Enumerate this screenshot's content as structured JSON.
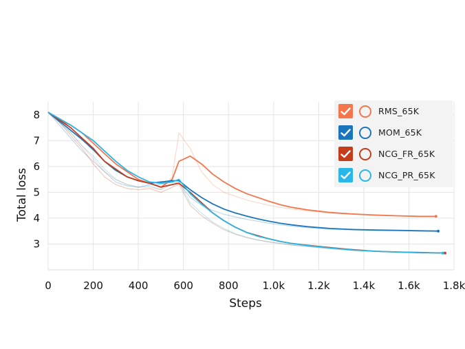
{
  "chart_data": {
    "type": "line",
    "title": "",
    "xlabel": "Steps",
    "ylabel": "Total loss",
    "xlim": [
      0,
      1800
    ],
    "ylim": [
      2.0,
      8.5
    ],
    "xticks": [
      0,
      200,
      400,
      600,
      800,
      1000,
      1200,
      1400,
      1600,
      1800
    ],
    "xtick_labels": [
      "0",
      "200",
      "400",
      "600",
      "800",
      "1.0k",
      "1.2k",
      "1.4k",
      "1.6k",
      "1.8k"
    ],
    "yticks": [
      3,
      4,
      5,
      6,
      7,
      8
    ],
    "ytick_labels": [
      "3",
      "4",
      "5",
      "6",
      "7",
      "8"
    ],
    "grid": true,
    "legend_position": "top-right",
    "series": [
      {
        "name": "RMS_65K",
        "color": "#f4764c",
        "x": [
          0,
          50,
          100,
          150,
          200,
          250,
          300,
          350,
          400,
          450,
          500,
          550,
          580,
          630,
          680,
          730,
          780,
          830,
          880,
          930,
          980,
          1030,
          1080,
          1150,
          1250,
          1350,
          1450,
          1550,
          1650,
          1720
        ],
        "y": [
          8.1,
          7.8,
          7.6,
          7.3,
          6.9,
          6.5,
          6.1,
          5.8,
          5.5,
          5.35,
          5.2,
          5.5,
          6.2,
          6.4,
          6.1,
          5.7,
          5.4,
          5.15,
          4.95,
          4.8,
          4.65,
          4.52,
          4.42,
          4.32,
          4.22,
          4.16,
          4.12,
          4.09,
          4.07,
          4.07
        ],
        "raw": [
          8.1,
          7.7,
          7.3,
          6.8,
          6.3,
          5.8,
          5.5,
          5.3,
          5.2,
          5.2,
          5.1,
          5.6,
          7.3,
          6.7,
          5.8,
          5.3,
          5.0,
          4.85,
          4.7,
          4.6,
          4.5,
          4.42,
          4.35,
          4.28,
          4.2,
          4.15,
          4.1,
          4.08,
          4.06,
          4.07
        ]
      },
      {
        "name": "MOM_65K",
        "color": "#1a75bc",
        "x": [
          0,
          50,
          100,
          150,
          200,
          250,
          300,
          350,
          400,
          450,
          500,
          550,
          580,
          630,
          680,
          730,
          780,
          830,
          880,
          930,
          980,
          1030,
          1080,
          1150,
          1250,
          1350,
          1450,
          1550,
          1650,
          1730
        ],
        "y": [
          8.1,
          7.75,
          7.4,
          7.05,
          6.65,
          6.2,
          5.85,
          5.6,
          5.45,
          5.35,
          5.4,
          5.45,
          5.45,
          5.1,
          4.8,
          4.55,
          4.35,
          4.2,
          4.08,
          3.97,
          3.88,
          3.8,
          3.74,
          3.67,
          3.6,
          3.56,
          3.54,
          3.53,
          3.51,
          3.5
        ],
        "raw": [
          8.1,
          7.6,
          7.1,
          6.6,
          6.2,
          5.8,
          5.4,
          5.25,
          5.2,
          5.3,
          5.3,
          5.4,
          5.35,
          4.8,
          4.5,
          4.3,
          4.15,
          4.05,
          3.95,
          3.88,
          3.8,
          3.74,
          3.69,
          3.63,
          3.57,
          3.54,
          3.52,
          3.51,
          3.5,
          3.5
        ]
      },
      {
        "name": "NCG_FR_65K",
        "color": "#c43e1c",
        "x": [
          0,
          50,
          100,
          150,
          200,
          250,
          300,
          350,
          400,
          450,
          500,
          550,
          580,
          630,
          680,
          730,
          780,
          830,
          880,
          930,
          980,
          1030,
          1080,
          1150,
          1250,
          1350,
          1450,
          1550,
          1650,
          1760
        ],
        "y": [
          8.1,
          7.8,
          7.5,
          7.1,
          6.7,
          6.2,
          5.9,
          5.6,
          5.45,
          5.35,
          5.2,
          5.3,
          5.35,
          5.0,
          4.6,
          4.2,
          3.9,
          3.65,
          3.45,
          3.32,
          3.2,
          3.1,
          3.02,
          2.95,
          2.86,
          2.78,
          2.72,
          2.69,
          2.67,
          2.65
        ],
        "raw": [
          8.1,
          7.7,
          7.2,
          6.7,
          6.1,
          5.6,
          5.3,
          5.15,
          5.1,
          5.15,
          5.0,
          5.2,
          5.3,
          4.5,
          4.1,
          3.8,
          3.55,
          3.38,
          3.25,
          3.15,
          3.08,
          3.02,
          2.96,
          2.9,
          2.82,
          2.75,
          2.71,
          2.68,
          2.66,
          2.65
        ]
      },
      {
        "name": "NCG_PR_65K",
        "color": "#29b6e8",
        "x": [
          0,
          50,
          100,
          150,
          200,
          250,
          300,
          350,
          400,
          450,
          500,
          550,
          580,
          630,
          680,
          730,
          780,
          830,
          880,
          930,
          980,
          1030,
          1080,
          1150,
          1250,
          1350,
          1450,
          1550,
          1650,
          1750
        ],
        "y": [
          8.1,
          7.85,
          7.6,
          7.3,
          7.0,
          6.6,
          6.2,
          5.85,
          5.6,
          5.4,
          5.35,
          5.4,
          5.5,
          4.95,
          4.55,
          4.2,
          3.9,
          3.65,
          3.45,
          3.3,
          3.2,
          3.1,
          3.02,
          2.94,
          2.85,
          2.77,
          2.72,
          2.69,
          2.66,
          2.65
        ],
        "raw": [
          8.1,
          7.7,
          7.3,
          6.8,
          6.4,
          5.9,
          5.5,
          5.3,
          5.2,
          5.25,
          5.1,
          5.3,
          5.4,
          4.6,
          4.2,
          3.85,
          3.6,
          3.4,
          3.26,
          3.16,
          3.08,
          3.02,
          2.96,
          2.9,
          2.82,
          2.75,
          2.71,
          2.68,
          2.66,
          2.65
        ]
      }
    ]
  }
}
